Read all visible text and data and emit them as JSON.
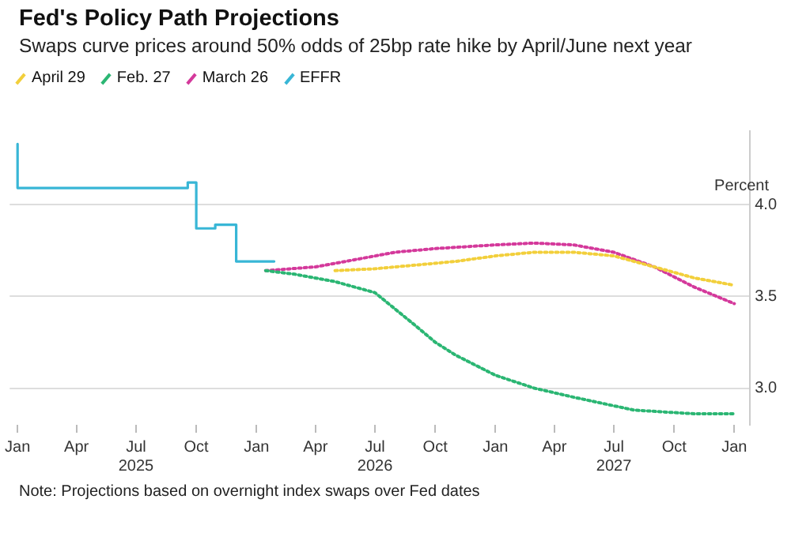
{
  "chart_data": {
    "type": "line",
    "title": "Fed's Policy Path Projections",
    "subtitle": "Swaps curve prices around 50% odds of 25bp rate hike by April/June next year",
    "ylabel": "Percent",
    "series": [
      {
        "name": "April 29",
        "color": "#f2cf3b",
        "line_style": "dotted",
        "x": [
          "2026-05-01",
          "2026-07-01",
          "2026-09-01",
          "2026-11-01",
          "2027-01-01",
          "2027-03-01",
          "2027-05-01",
          "2027-07-01",
          "2027-09-01",
          "2027-11-01",
          "2028-01-01"
        ],
        "values": [
          3.64,
          3.65,
          3.67,
          3.69,
          3.72,
          3.74,
          3.74,
          3.72,
          3.66,
          3.6,
          3.56
        ]
      },
      {
        "name": "Feb. 27",
        "color": "#2bb673",
        "line_style": "dotted",
        "x": [
          "2026-01-15",
          "2026-03-01",
          "2026-05-01",
          "2026-07-01",
          "2026-08-01",
          "2026-09-01",
          "2026-10-01",
          "2026-11-01",
          "2027-01-01",
          "2027-03-01",
          "2027-05-01",
          "2027-08-01",
          "2027-11-01",
          "2028-01-01"
        ],
        "values": [
          3.64,
          3.62,
          3.58,
          3.52,
          3.43,
          3.34,
          3.25,
          3.18,
          3.07,
          3.0,
          2.95,
          2.88,
          2.86,
          2.86
        ]
      },
      {
        "name": "March 26",
        "color": "#d4399b",
        "line_style": "dotted",
        "x": [
          "2026-01-15",
          "2026-04-01",
          "2026-06-01",
          "2026-08-01",
          "2026-10-01",
          "2027-01-01",
          "2027-03-01",
          "2027-05-01",
          "2027-07-01",
          "2027-09-01",
          "2027-11-01",
          "2028-01-01"
        ],
        "values": [
          3.64,
          3.66,
          3.7,
          3.74,
          3.76,
          3.78,
          3.79,
          3.78,
          3.74,
          3.66,
          3.55,
          3.46
        ]
      },
      {
        "name": "EFFR",
        "color": "#38b6d6",
        "type": "step",
        "line_style": "solid",
        "x": [
          "2025-01-01",
          "2025-09-18",
          "2025-10-01",
          "2025-10-30",
          "2025-12-01",
          "2025-12-11",
          "2026-01-28"
        ],
        "values": [
          4.33,
          4.09,
          4.12,
          3.87,
          3.89,
          3.69,
          3.69
        ]
      }
    ],
    "xlim": [
      "2024-12-20",
      "2028-01-25"
    ],
    "xticks": [
      {
        "value": "2025-01-01",
        "label": "Jan"
      },
      {
        "value": "2025-04-01",
        "label": "Apr"
      },
      {
        "value": "2025-07-01",
        "label": "Jul\n2025"
      },
      {
        "value": "2025-10-01",
        "label": "Oct"
      },
      {
        "value": "2026-01-01",
        "label": "Jan"
      },
      {
        "value": "2026-04-01",
        "label": "Apr"
      },
      {
        "value": "2026-07-01",
        "label": "Jul\n2026"
      },
      {
        "value": "2026-10-01",
        "label": "Oct"
      },
      {
        "value": "2027-01-01",
        "label": "Jan"
      },
      {
        "value": "2027-04-01",
        "label": "Apr"
      },
      {
        "value": "2027-07-01",
        "label": "Jul\n2027"
      },
      {
        "value": "2027-10-01",
        "label": "Oct"
      },
      {
        "value": "2028-01-01",
        "label": "Jan"
      }
    ],
    "ylim": [
      2.8,
      4.4
    ],
    "yticks": [
      {
        "value": 3,
        "label": "3.0"
      },
      {
        "value": 3.5,
        "label": "3.5"
      },
      {
        "value": 4,
        "label": "4.0"
      }
    ],
    "grid": "y",
    "legend": "top left",
    "marker": "none",
    "annotations": [
      "Note: Projections based on overnight index swaps over Fed dates"
    ]
  }
}
